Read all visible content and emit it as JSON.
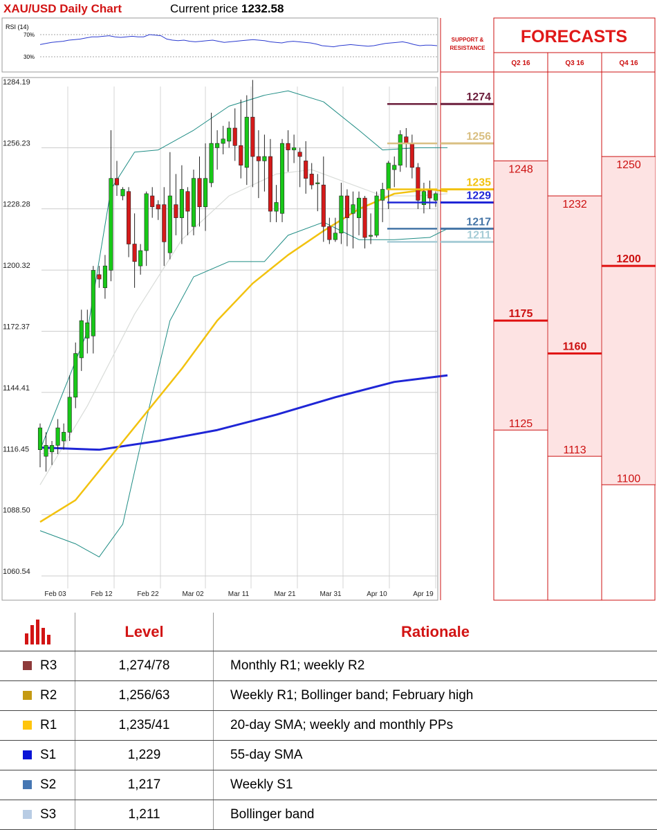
{
  "header": {
    "title": "XAU/USD Daily Chart",
    "price_label": "Current price",
    "price_value": "1232.58"
  },
  "chart_data": {
    "type": "candlestick",
    "title": "XAU/USD Daily Chart",
    "ylim": [
      1050,
      1290
    ],
    "y_ticks": [
      1284.19,
      1256.23,
      1228.28,
      1200.32,
      1172.37,
      1144.41,
      1116.45,
      1088.5,
      1060.54
    ],
    "x_tick_labels": [
      "Feb 03",
      "Feb 12",
      "Feb 22",
      "Mar 02",
      "Mar 11",
      "Mar 21",
      "Mar 31",
      "Apr 10",
      "Apr 19"
    ],
    "colors": {
      "up": "#18c818",
      "down": "#d41a1a",
      "sma20": "#f2c20f",
      "sma200": "#1f26d6",
      "bollinger": "#1e8c84",
      "sma55": "#d9dcd9"
    },
    "candles": [
      [
        1116,
        1126,
        1110,
        1108,
        1128
      ],
      [
        1113,
        1118,
        1111,
        1106,
        1124
      ],
      [
        1115,
        1118,
        1112,
        1109,
        1120
      ],
      [
        1118,
        1126,
        1116,
        1114,
        1130
      ],
      [
        1120,
        1124,
        1119,
        1116,
        1128
      ],
      [
        1124,
        1140,
        1122,
        1120,
        1150
      ],
      [
        1140,
        1160,
        1139,
        1135,
        1165
      ],
      [
        1158,
        1175,
        1156,
        1152,
        1180
      ],
      [
        1167,
        1174,
        1166,
        1160,
        1180
      ],
      [
        1168,
        1198,
        1166,
        1160,
        1200
      ],
      [
        1196,
        1194,
        1192,
        1190,
        1200
      ],
      [
        1190,
        1200,
        1189,
        1185,
        1205
      ],
      [
        1198,
        1240,
        1197,
        1193,
        1262
      ],
      [
        1240,
        1237,
        1236,
        1232,
        1248
      ],
      [
        1232,
        1235,
        1230,
        1230,
        1236
      ],
      [
        1234,
        1210,
        1208,
        1204,
        1236
      ],
      [
        1210,
        1202,
        1201,
        1190,
        1224
      ],
      [
        1200,
        1207,
        1198,
        1196,
        1210
      ],
      [
        1207,
        1233,
        1206,
        1200,
        1234
      ],
      [
        1232,
        1227,
        1225,
        1222,
        1236
      ],
      [
        1228,
        1226,
        1224,
        1221,
        1230
      ],
      [
        1228,
        1211,
        1206,
        1200,
        1236
      ],
      [
        1206,
        1232,
        1205,
        1203,
        1252
      ],
      [
        1228,
        1222,
        1218,
        1214,
        1242
      ],
      [
        1222,
        1235,
        1221,
        1210,
        1246
      ],
      [
        1234,
        1225,
        1225,
        1214,
        1236
      ],
      [
        1218,
        1240,
        1216,
        1214,
        1244
      ],
      [
        1240,
        1227,
        1225,
        1218,
        1250
      ],
      [
        1227,
        1240,
        1226,
        1216,
        1256
      ],
      [
        1238,
        1256,
        1237,
        1236,
        1270
      ],
      [
        1254,
        1256,
        1254,
        1244,
        1262
      ],
      [
        1256,
        1258,
        1255,
        1251,
        1264
      ],
      [
        1257,
        1263,
        1256,
        1254,
        1266
      ],
      [
        1263,
        1255,
        1254,
        1248,
        1272
      ],
      [
        1255,
        1246,
        1245,
        1240,
        1276
      ],
      [
        1245,
        1268,
        1244,
        1237,
        1278
      ],
      [
        1268,
        1250,
        1249,
        1236,
        1285
      ],
      [
        1250,
        1248,
        1246,
        1231,
        1262
      ],
      [
        1248,
        1250,
        1247,
        1234,
        1260
      ],
      [
        1250,
        1225,
        1224,
        1220,
        1258
      ],
      [
        1225,
        1229,
        1222,
        1220,
        1237
      ],
      [
        1224,
        1256,
        1223,
        1220,
        1258
      ],
      [
        1256,
        1253,
        1252,
        1243,
        1262
      ],
      [
        1253,
        1254,
        1251,
        1247,
        1260
      ],
      [
        1252,
        1250,
        1248,
        1236,
        1254
      ],
      [
        1248,
        1240,
        1238,
        1233,
        1257
      ],
      [
        1242,
        1237,
        1236,
        1235,
        1247
      ],
      [
        1238,
        1238,
        1237,
        1225,
        1242
      ],
      [
        1237,
        1218,
        1216,
        1211,
        1250
      ],
      [
        1218,
        1212,
        1210,
        1210,
        1222
      ],
      [
        1212,
        1215,
        1211,
        1211,
        1222
      ],
      [
        1215,
        1232,
        1214,
        1210,
        1238
      ],
      [
        1232,
        1222,
        1221,
        1209,
        1235
      ],
      [
        1224,
        1228,
        1223,
        1208,
        1234
      ],
      [
        1222,
        1231,
        1221,
        1214,
        1234
      ],
      [
        1231,
        1213,
        1212,
        1208,
        1232
      ],
      [
        1214,
        1214,
        1213,
        1210,
        1224
      ],
      [
        1214,
        1232,
        1213,
        1213,
        1234
      ],
      [
        1230,
        1235,
        1228,
        1220,
        1238
      ],
      [
        1235,
        1247,
        1234,
        1226,
        1248
      ],
      [
        1244,
        1246,
        1242,
        1236,
        1250
      ],
      [
        1246,
        1260,
        1245,
        1243,
        1262
      ],
      [
        1259,
        1256,
        1255,
        1245,
        1263
      ],
      [
        1256,
        1245,
        1244,
        1240,
        1260
      ],
      [
        1245,
        1230,
        1229,
        1226,
        1247
      ],
      [
        1228,
        1234,
        1227,
        1224,
        1238
      ],
      [
        1235,
        1231,
        1229,
        1226,
        1239
      ],
      [
        1230,
        1233,
        1229,
        1227,
        1234
      ]
    ],
    "candle_note": "each candle = [open, close, low_body_ref, low, high]",
    "sma20": [
      [
        0,
        1083
      ],
      [
        6,
        1093
      ],
      [
        12,
        1113
      ],
      [
        18,
        1133
      ],
      [
        24,
        1153
      ],
      [
        30,
        1175
      ],
      [
        36,
        1192
      ],
      [
        42,
        1205
      ],
      [
        48,
        1216
      ],
      [
        54,
        1226
      ],
      [
        60,
        1233
      ],
      [
        66,
        1235
      ],
      [
        69,
        1234
      ]
    ],
    "sma200": [
      [
        0,
        1117
      ],
      [
        10,
        1116
      ],
      [
        20,
        1120
      ],
      [
        30,
        1125
      ],
      [
        40,
        1132
      ],
      [
        50,
        1140
      ],
      [
        60,
        1147
      ],
      [
        69,
        1150
      ]
    ],
    "sma55": [
      [
        0,
        1100
      ],
      [
        8,
        1136
      ],
      [
        16,
        1178
      ],
      [
        24,
        1212
      ],
      [
        32,
        1232
      ],
      [
        40,
        1242
      ],
      [
        46,
        1244
      ],
      [
        52,
        1238
      ],
      [
        58,
        1232
      ],
      [
        64,
        1232
      ],
      [
        69,
        1233
      ]
    ],
    "bollinger_upper": [
      [
        0,
        1116
      ],
      [
        8,
        1170
      ],
      [
        12,
        1235
      ],
      [
        16,
        1252
      ],
      [
        20,
        1253
      ],
      [
        26,
        1262
      ],
      [
        32,
        1273
      ],
      [
        38,
        1278
      ],
      [
        42,
        1280
      ],
      [
        48,
        1275
      ],
      [
        54,
        1262
      ],
      [
        58,
        1253
      ],
      [
        64,
        1254
      ],
      [
        69,
        1254
      ]
    ],
    "bollinger_lower": [
      [
        0,
        1079
      ],
      [
        6,
        1073
      ],
      [
        10,
        1067
      ],
      [
        14,
        1082
      ],
      [
        18,
        1130
      ],
      [
        22,
        1175
      ],
      [
        26,
        1195
      ],
      [
        32,
        1202
      ],
      [
        38,
        1202
      ],
      [
        42,
        1214
      ],
      [
        48,
        1220
      ],
      [
        54,
        1212
      ],
      [
        60,
        1212
      ],
      [
        66,
        1213
      ],
      [
        69,
        1217
      ]
    ],
    "levels": [
      {
        "value": 1274,
        "label": "1274",
        "color": "#6b1d3b"
      },
      {
        "value": 1256,
        "label": "1256",
        "color": "#d9bf82"
      },
      {
        "value": 1235,
        "label": "1235",
        "color": "#f2c20f"
      },
      {
        "value": 1229,
        "label": "1229",
        "color": "#1f26d6"
      },
      {
        "value": 1217,
        "label": "1217",
        "color": "#4575a6"
      },
      {
        "value": 1211,
        "label": "1211",
        "color": "#a6ccd6"
      }
    ]
  },
  "rsi": {
    "label": "RSI (14)",
    "levels": [
      "70%",
      "30%"
    ],
    "level_values": [
      70,
      30
    ],
    "series": [
      52,
      54,
      56,
      57,
      58,
      60,
      61,
      62,
      64,
      66,
      66,
      67,
      68,
      66,
      65,
      66,
      67,
      66,
      66,
      70,
      69,
      68,
      62,
      60,
      59,
      60,
      58,
      57,
      58,
      59,
      60,
      58,
      56,
      57,
      58,
      59,
      60,
      61,
      60,
      59,
      57,
      56,
      55,
      57,
      58,
      57,
      56,
      55,
      53,
      50,
      49,
      48,
      50,
      51,
      52,
      51,
      50,
      49,
      50,
      52,
      54,
      55,
      56,
      57,
      55,
      52,
      50,
      51,
      51,
      50
    ]
  },
  "forecasts": {
    "title": "FORECASTS",
    "sr_label": "SUPPORT & RESISTANCE",
    "columns": [
      {
        "quarter": "Q2 16",
        "high": 1248,
        "mid": 1175,
        "low": 1125,
        "high_label": "1248",
        "mid_label": "1175",
        "low_label": "1125"
      },
      {
        "quarter": "Q3 16",
        "high": 1232,
        "mid": 1160,
        "low": 1113,
        "high_label": "1232",
        "mid_label": "1160",
        "low_label": "1113"
      },
      {
        "quarter": "Q4 16",
        "high": 1250,
        "mid": 1200,
        "low": 1100,
        "high_label": "1250",
        "mid_label": "1200",
        "low_label": "1100"
      }
    ]
  },
  "levels_table": {
    "header_level": "Level",
    "header_rationale": "Rationale",
    "rows": [
      {
        "name": "R3",
        "level": "1,274/78",
        "rationale": "Monthly R1; weekly R2",
        "color": "#8e3a3a"
      },
      {
        "name": "R2",
        "level": "1,256/63",
        "rationale": "Weekly R1; Bollinger band; February high",
        "color": "#c59a12"
      },
      {
        "name": "R1",
        "level": "1,235/41",
        "rationale": "20-day SMA; weekly and monthly PPs",
        "color": "#ffc50c"
      },
      {
        "name": "S1",
        "level": "1,229",
        "rationale": "55-day SMA",
        "color": "#0a14d6"
      },
      {
        "name": "S2",
        "level": "1,217",
        "rationale": "Weekly S1",
        "color": "#4677b3"
      },
      {
        "name": "S3",
        "level": "1,211",
        "rationale": "Bollinger band",
        "color": "#b8cce4"
      }
    ]
  }
}
